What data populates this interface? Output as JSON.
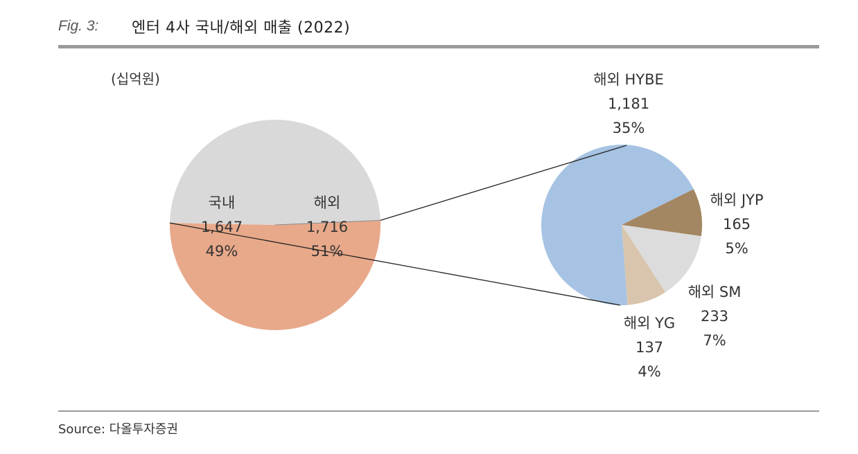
{
  "figure": {
    "number": "Fig. 3:",
    "title": "엔터 4사 국내/해외 매출 (2022)",
    "unit": "(십억원)",
    "source": "Source:  다올투자증권"
  },
  "colors": {
    "domestic": "#d9d9d9",
    "overseas": "#e8a98a",
    "hybe": "#a7c3e3",
    "jyp": "#a38662",
    "sm": "#dcdcdc",
    "yg": "#d9c5ad",
    "connector": "#222222"
  },
  "chart_data": [
    {
      "type": "pie",
      "title": "",
      "slices": [
        {
          "name": "해외",
          "value": "1,716",
          "pct": "51%",
          "share": 51
        },
        {
          "name": "국내",
          "value": "1,647",
          "pct": "49%",
          "share": 49
        }
      ]
    },
    {
      "type": "pie",
      "title": "",
      "slices": [
        {
          "name": "해외 HYBE",
          "value": "1,181",
          "pct": "35%",
          "share": 68.8
        },
        {
          "name": "해외 JYP",
          "value": "165",
          "pct": "5%",
          "share": 9.6
        },
        {
          "name": "해외 SM",
          "value": "233",
          "pct": "7%",
          "share": 13.6
        },
        {
          "name": "해외 YG",
          "value": "137",
          "pct": "4%",
          "share": 8.0
        }
      ]
    }
  ]
}
